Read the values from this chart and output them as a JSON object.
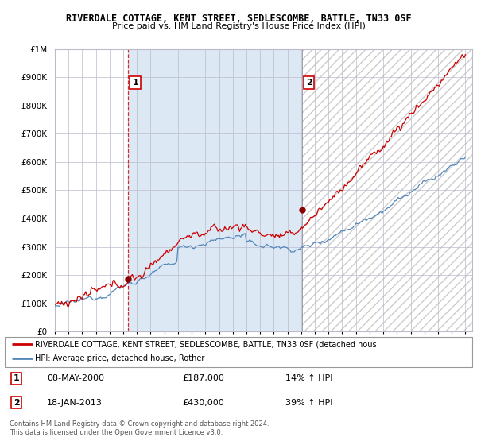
{
  "title": "RIVERDALE COTTAGE, KENT STREET, SEDLESCOMBE, BATTLE, TN33 0SF",
  "subtitle": "Price paid vs. HM Land Registry's House Price Index (HPI)",
  "x_start_year": 1995,
  "x_end_year": 2025,
  "y_min": 0,
  "y_max": 1000000,
  "y_ticks": [
    0,
    100000,
    200000,
    300000,
    400000,
    500000,
    600000,
    700000,
    800000,
    900000,
    1000000
  ],
  "y_tick_labels": [
    "£0",
    "£100K",
    "£200K",
    "£300K",
    "£400K",
    "£500K",
    "£600K",
    "£700K",
    "£800K",
    "£900K",
    "£1M"
  ],
  "property_color": "#cc0000",
  "hpi_color": "#5588bb",
  "sale1_year": 2000.35,
  "sale1_price": 187000,
  "sale1_label": "1",
  "sale1_date": "08-MAY-2000",
  "sale1_hpi": "14% ↑ HPI",
  "sale2_year": 2013.05,
  "sale2_price": 430000,
  "sale2_label": "2",
  "sale2_date": "18-JAN-2013",
  "sale2_hpi": "39% ↑ HPI",
  "legend_property": "RIVERDALE COTTAGE, KENT STREET, SEDLESCOMBE, BATTLE, TN33 0SF (detached hous",
  "legend_hpi": "HPI: Average price, detached house, Rother",
  "footnote": "Contains HM Land Registry data © Crown copyright and database right 2024.\nThis data is licensed under the Open Government Licence v3.0.",
  "background_color": "#ffffff",
  "grid_color": "#bbbbcc",
  "shade_color": "#dde8f5",
  "hatch_color": "#cccccc"
}
